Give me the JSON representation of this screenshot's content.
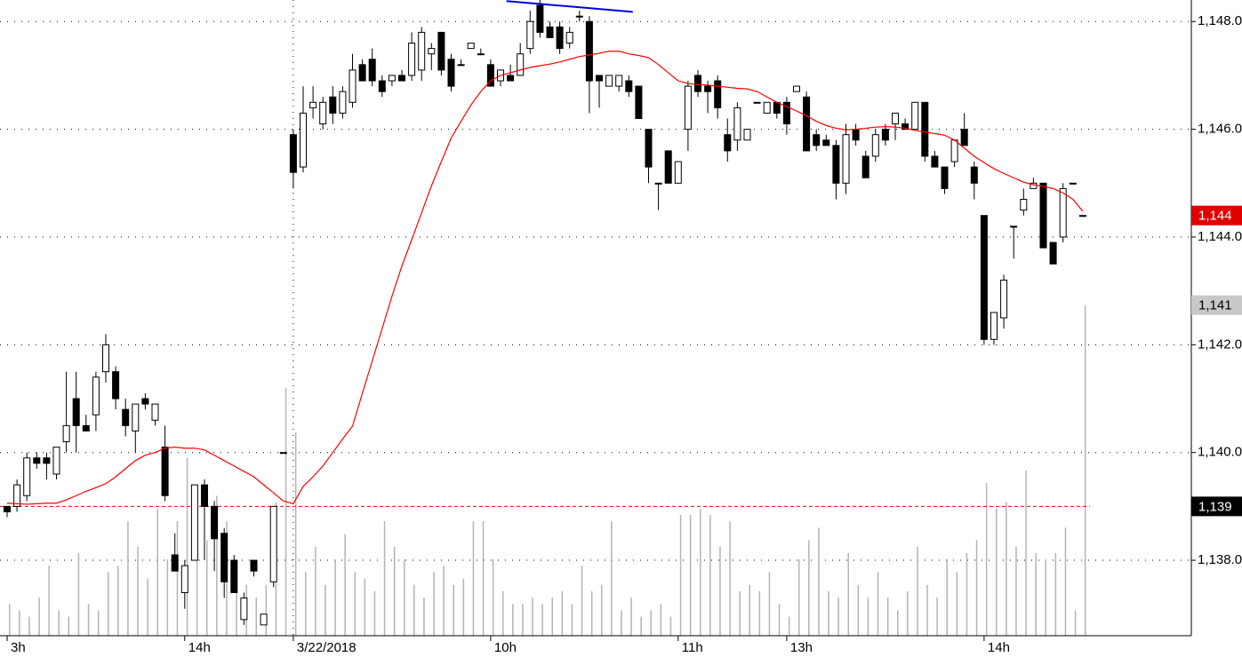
{
  "chart_data": {
    "type": "candlestick",
    "categories": [
      "3h",
      null,
      null,
      null,
      null,
      null,
      null,
      null,
      null,
      null,
      null,
      null,
      null,
      null,
      null,
      null,
      null,
      null,
      "14h",
      null,
      null,
      null,
      null,
      null,
      null,
      null,
      null,
      null,
      null,
      "3/22/2018",
      null,
      null,
      null,
      null,
      null,
      null,
      null,
      null,
      null,
      null,
      null,
      null,
      null,
      null,
      null,
      null,
      null,
      null,
      null,
      "10h",
      null,
      null,
      null,
      null,
      null,
      null,
      null,
      null,
      null,
      null,
      null,
      null,
      null,
      null,
      null,
      null,
      null,
      null,
      "11h",
      null,
      null,
      null,
      null,
      null,
      null,
      null,
      null,
      null,
      null,
      "13h",
      null,
      null,
      null,
      null,
      null,
      null,
      null,
      null,
      null,
      null,
      null,
      null,
      null,
      null,
      null,
      null,
      null,
      null,
      null,
      "14h",
      null,
      null,
      null,
      null,
      null,
      null,
      null,
      null,
      null,
      null
    ],
    "open": [
      1139.0,
      1139.0,
      1139.2,
      1139.9,
      1139.9,
      1139.6,
      1140.2,
      1141.0,
      1140.5,
      1140.7,
      1141.5,
      1141.5,
      1140.8,
      1140.4,
      1141.0,
      1140.6,
      1140.1,
      1138.1,
      1137.4,
      1138.0,
      1139.4,
      1139.0,
      1138.5,
      1138.0,
      1136.9,
      1138.0,
      1136.8,
      1137.6,
      1140.0,
      1145.9,
      1145.3,
      1146.4,
      1146.1,
      1146.6,
      1146.3,
      1146.5,
      1147.2,
      1147.3,
      1146.9,
      1146.9,
      1147.0,
      1147.0,
      1147.1,
      1147.4,
      1147.8,
      1147.3,
      1147.2,
      1147.5,
      1147.4,
      1147.2,
      1146.9,
      1147.0,
      1147.0,
      1147.5,
      1148.3,
      1147.9,
      1147.9,
      1147.6,
      1148.1,
      1148.0,
      1147.0,
      1146.8,
      1146.8,
      1146.9,
      1146.8,
      1146.0,
      1145.0,
      1145.6,
      1145.0,
      1146.0,
      1147.0,
      1146.8,
      1146.9,
      1145.9,
      1145.8,
      1145.8,
      1146.5,
      1146.3,
      1146.5,
      1146.5,
      1146.7,
      1146.6,
      1145.9,
      1145.8,
      1145.7,
      1145.0,
      1146.0,
      1145.5,
      1145.5,
      1146.0,
      1146.1,
      1146.1,
      1146.0,
      1146.5,
      1145.5,
      1145.3,
      1145.4,
      1146.0,
      1145.3,
      1144.4,
      1142.1,
      1142.5,
      1144.2,
      1144.5,
      1144.9,
      1145.0,
      1143.9,
      1144.0,
      1145.0,
      1144.4
    ],
    "high": [
      1139.0,
      1139.5,
      1140.0,
      1140.0,
      1140.0,
      1140.1,
      1141.5,
      1141.5,
      1140.7,
      1141.5,
      1142.2,
      1141.6,
      1141.0,
      1140.9,
      1141.1,
      1140.9,
      1140.5,
      1138.5,
      1138.0,
      1139.4,
      1139.5,
      1139.1,
      1138.6,
      1138.1,
      1137.4,
      1138.0,
      1137.0,
      1139.0,
      1140.0,
      1146.0,
      1146.8,
      1146.8,
      1146.6,
      1146.8,
      1146.8,
      1147.4,
      1147.3,
      1147.5,
      1147.0,
      1147.0,
      1147.1,
      1147.8,
      1147.9,
      1147.6,
      1147.8,
      1147.4,
      1147.3,
      1147.6,
      1147.5,
      1147.3,
      1147.1,
      1147.2,
      1147.6,
      1148.2,
      1148.4,
      1148.0,
      1148.0,
      1147.9,
      1148.2,
      1148.1,
      1147.0,
      1147.0,
      1147.0,
      1147.0,
      1146.8,
      1146.0,
      1145.0,
      1145.6,
      1145.4,
      1146.9,
      1147.1,
      1146.9,
      1147.0,
      1146.2,
      1146.5,
      1146.0,
      1146.5,
      1146.5,
      1146.5,
      1146.6,
      1146.8,
      1146.7,
      1146.0,
      1145.9,
      1145.8,
      1146.1,
      1146.1,
      1145.6,
      1146.0,
      1146.1,
      1146.3,
      1146.2,
      1146.5,
      1146.5,
      1145.6,
      1145.3,
      1145.8,
      1146.3,
      1145.4,
      1144.4,
      1142.6,
      1143.3,
      1144.2,
      1144.9,
      1145.1,
      1145.0,
      1143.9,
      1145.0,
      1145.0,
      1144.4
    ],
    "low": [
      1138.8,
      1138.9,
      1139.1,
      1139.7,
      1139.5,
      1139.5,
      1140.0,
      1140.0,
      1140.4,
      1140.4,
      1141.3,
      1140.8,
      1140.3,
      1140.0,
      1140.8,
      1140.5,
      1139.1,
      1137.8,
      1137.1,
      1138.0,
      1138.0,
      1137.8,
      1137.3,
      1137.4,
      1136.8,
      1137.7,
      1136.8,
      1137.5,
      1140.0,
      1144.9,
      1145.2,
      1146.2,
      1146.0,
      1146.1,
      1146.2,
      1146.4,
      1146.9,
      1146.8,
      1146.6,
      1146.8,
      1146.9,
      1146.9,
      1146.9,
      1147.1,
      1147.0,
      1146.7,
      1147.2,
      1147.5,
      1147.4,
      1146.8,
      1146.8,
      1146.9,
      1147.0,
      1147.4,
      1147.7,
      1147.7,
      1147.4,
      1147.5,
      1148.0,
      1146.3,
      1146.4,
      1146.8,
      1146.7,
      1146.6,
      1146.2,
      1145.0,
      1144.5,
      1145.0,
      1145.0,
      1145.6,
      1146.6,
      1146.3,
      1146.2,
      1145.4,
      1145.6,
      1145.8,
      1146.5,
      1146.3,
      1146.2,
      1145.9,
      1146.7,
      1145.6,
      1145.6,
      1145.7,
      1144.7,
      1144.8,
      1145.7,
      1145.1,
      1145.4,
      1145.7,
      1145.8,
      1146.0,
      1146.0,
      1145.4,
      1145.3,
      1144.8,
      1145.3,
      1145.7,
      1144.7,
      1142.0,
      1142.0,
      1142.3,
      1143.6,
      1144.4,
      1144.9,
      1143.8,
      1143.5,
      1143.9,
      1145.0,
      1144.4
    ],
    "close": [
      1138.9,
      1139.4,
      1139.9,
      1139.8,
      1139.8,
      1140.1,
      1140.5,
      1140.5,
      1140.4,
      1141.4,
      1142.0,
      1141.0,
      1140.5,
      1140.9,
      1140.9,
      1140.9,
      1139.2,
      1137.8,
      1137.9,
      1139.4,
      1139.0,
      1138.4,
      1137.6,
      1137.4,
      1137.3,
      1137.8,
      1137.0,
      1139.0,
      1140.0,
      1145.2,
      1146.3,
      1146.5,
      1146.5,
      1146.3,
      1146.7,
      1147.1,
      1146.9,
      1146.9,
      1146.7,
      1147.0,
      1146.9,
      1147.6,
      1147.8,
      1147.5,
      1147.1,
      1146.8,
      1147.2,
      1147.6,
      1147.4,
      1146.8,
      1147.1,
      1146.9,
      1147.4,
      1148.0,
      1147.8,
      1147.7,
      1147.5,
      1147.8,
      1148.1,
      1146.9,
      1146.9,
      1147.0,
      1147.0,
      1146.7,
      1146.2,
      1145.3,
      1145.0,
      1145.0,
      1145.4,
      1146.8,
      1146.7,
      1146.7,
      1146.4,
      1145.6,
      1146.4,
      1146.0,
      1146.5,
      1146.5,
      1146.3,
      1146.1,
      1146.8,
      1145.6,
      1145.7,
      1145.7,
      1145.0,
      1145.9,
      1145.8,
      1145.1,
      1145.9,
      1145.8,
      1146.3,
      1146.0,
      1146.5,
      1145.5,
      1145.3,
      1144.9,
      1145.8,
      1145.7,
      1145.0,
      1142.1,
      1142.6,
      1143.2,
      1144.2,
      1144.7,
      1145.0,
      1143.8,
      1143.5,
      1144.9,
      1145.0,
      1144.4
    ],
    "ma": {
      "color": "#ff0000",
      "values": [
        1139.06,
        1139.05,
        1139.04,
        1139.05,
        1139.06,
        1139.06,
        1139.12,
        1139.2,
        1139.28,
        1139.35,
        1139.42,
        1139.55,
        1139.7,
        1139.85,
        1139.95,
        1140.0,
        1140.08,
        1140.1,
        1140.08,
        1140.08,
        1140.05,
        1139.95,
        1139.85,
        1139.75,
        1139.65,
        1139.55,
        1139.4,
        1139.25,
        1139.1,
        1139.05,
        1139.37,
        1139.55,
        1139.75,
        1140.0,
        1140.25,
        1140.49,
        1141.1,
        1141.7,
        1142.3,
        1142.9,
        1143.46,
        1143.95,
        1144.45,
        1144.95,
        1145.4,
        1145.84,
        1146.15,
        1146.45,
        1146.7,
        1146.9,
        1147.0,
        1147.05,
        1147.1,
        1147.15,
        1147.18,
        1147.21,
        1147.25,
        1147.3,
        1147.35,
        1147.38,
        1147.41,
        1147.45,
        1147.45,
        1147.4,
        1147.37,
        1147.33,
        1147.2,
        1147.05,
        1146.9,
        1146.85,
        1146.83,
        1146.82,
        1146.8,
        1146.78,
        1146.76,
        1146.75,
        1146.7,
        1146.6,
        1146.5,
        1146.42,
        1146.34,
        1146.25,
        1146.15,
        1146.07,
        1146.02,
        1145.99,
        1146.0,
        1146.02,
        1146.04,
        1146.05,
        1146.04,
        1146.02,
        1145.98,
        1145.95,
        1145.92,
        1145.89,
        1145.8,
        1145.65,
        1145.5,
        1145.38,
        1145.27,
        1145.18,
        1145.1,
        1145.02,
        1144.97,
        1144.94,
        1144.9,
        1144.82,
        1144.7,
        1144.48
      ]
    },
    "volume": [
      5,
      4,
      3,
      6,
      11,
      4,
      3,
      13,
      5,
      4,
      10,
      11,
      18,
      14,
      9,
      20,
      12,
      18,
      28,
      16,
      15,
      22,
      18,
      12,
      8,
      6,
      8,
      21,
      39,
      32,
      10,
      14,
      8,
      12,
      16,
      10,
      9,
      7,
      18,
      14,
      12,
      8,
      6,
      10,
      11,
      8,
      9,
      18,
      18,
      12,
      7,
      5,
      5,
      6,
      5,
      6,
      7,
      5,
      11,
      7,
      8,
      18,
      4,
      6,
      3,
      4,
      5,
      3,
      19,
      19,
      20,
      19,
      14,
      18,
      7,
      8,
      7,
      10,
      5,
      3,
      12,
      15,
      17,
      7,
      6,
      13,
      8,
      6,
      10,
      6,
      4,
      7,
      14,
      8,
      6,
      12,
      10,
      13,
      15,
      24,
      20,
      21,
      14,
      26,
      13,
      12,
      13,
      17,
      4,
      52
    ],
    "volume_color": "#b4b4b4",
    "up_color": "#ffffff",
    "down_color": "#000000",
    "ylim": [
      1136.6,
      1148.4
    ],
    "yticks": [
      {
        "value": 1138,
        "label": "1,138.0"
      },
      {
        "value": 1140,
        "label": "1,140.0"
      },
      {
        "value": 1142,
        "label": "1,142.0"
      },
      {
        "value": 1144,
        "label": "1,144.0"
      },
      {
        "value": 1146,
        "label": "1,146.0"
      },
      {
        "value": 1148,
        "label": "1,148.0"
      }
    ],
    "y2lim": [
      0,
      100
    ],
    "grid": true,
    "reference_line": {
      "value": 1139,
      "label": "1,139",
      "color": "#ff0000"
    },
    "last_price": {
      "value": 1144.4,
      "label": "1,144",
      "color": "#e00000"
    },
    "volume_label": {
      "label": "1,141",
      "color": "#c8c8c8"
    },
    "trendline": {
      "x": [
        50.6,
        63.4
      ],
      "y": [
        1148.38,
        1148.18
      ],
      "color": "#0000e0"
    }
  }
}
